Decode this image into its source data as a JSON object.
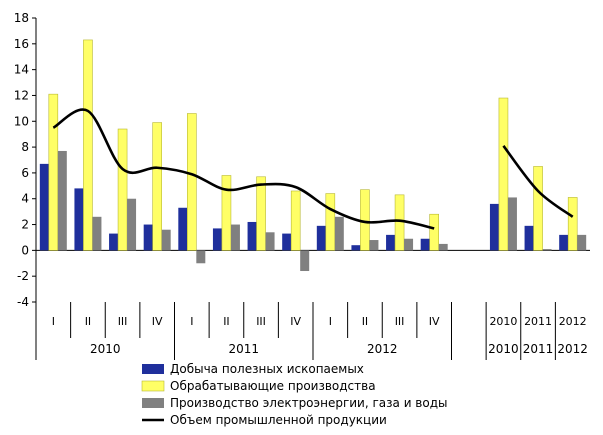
{
  "chart_data": {
    "type": "bar",
    "ylim": [
      -4,
      18
    ],
    "ytick_step": 2,
    "grid": false,
    "legend_position": "bottom",
    "categories": [
      "I",
      "II",
      "III",
      "IV",
      "I",
      "II",
      "III",
      "IV",
      "I",
      "II",
      "III",
      "IV",
      "2010",
      "2011",
      "2012"
    ],
    "category_slots": [
      0,
      1,
      2,
      3,
      4,
      5,
      6,
      7,
      8,
      9,
      10,
      11,
      13,
      14,
      15
    ],
    "slot_count": 16,
    "year_groups": [
      {
        "label": "2010",
        "first_slot": 0,
        "last_slot": 3
      },
      {
        "label": "2011",
        "first_slot": 4,
        "last_slot": 7
      },
      {
        "label": "2012",
        "first_slot": 8,
        "last_slot": 11
      },
      {
        "label": "2010",
        "first_slot": 13,
        "last_slot": 13
      },
      {
        "label": "2011",
        "first_slot": 14,
        "last_slot": 14
      },
      {
        "label": "2012",
        "first_slot": 15,
        "last_slot": 15
      }
    ],
    "series": [
      {
        "name": "Добыча полезных ископаемых",
        "kind": "bar",
        "color": "#1f2f9c",
        "values": [
          6.7,
          4.8,
          1.3,
          2.0,
          3.3,
          1.7,
          2.2,
          1.3,
          1.9,
          0.4,
          1.2,
          0.9,
          3.6,
          1.9,
          1.2
        ]
      },
      {
        "name": "Обрабатывающие производства",
        "kind": "bar",
        "color": "#ffff66",
        "values": [
          12.1,
          16.3,
          9.4,
          9.9,
          10.6,
          5.8,
          5.7,
          4.6,
          4.4,
          4.7,
          4.3,
          2.8,
          11.8,
          6.5,
          4.1
        ]
      },
      {
        "name": "Производство электроэнергии, газа и воды",
        "kind": "bar",
        "color": "#808080",
        "values": [
          7.7,
          2.6,
          4.0,
          1.6,
          -1.0,
          2.0,
          1.4,
          -1.6,
          2.6,
          0.8,
          0.9,
          0.5,
          4.1,
          0.1,
          1.2
        ]
      },
      {
        "name": "Объем промышленной продукции",
        "kind": "line",
        "color": "#000000",
        "values": [
          9.5,
          10.8,
          6.3,
          6.4,
          5.9,
          4.7,
          5.1,
          4.9,
          3.2,
          2.2,
          2.3,
          1.7,
          8.1,
          4.6,
          2.6
        ]
      }
    ]
  }
}
